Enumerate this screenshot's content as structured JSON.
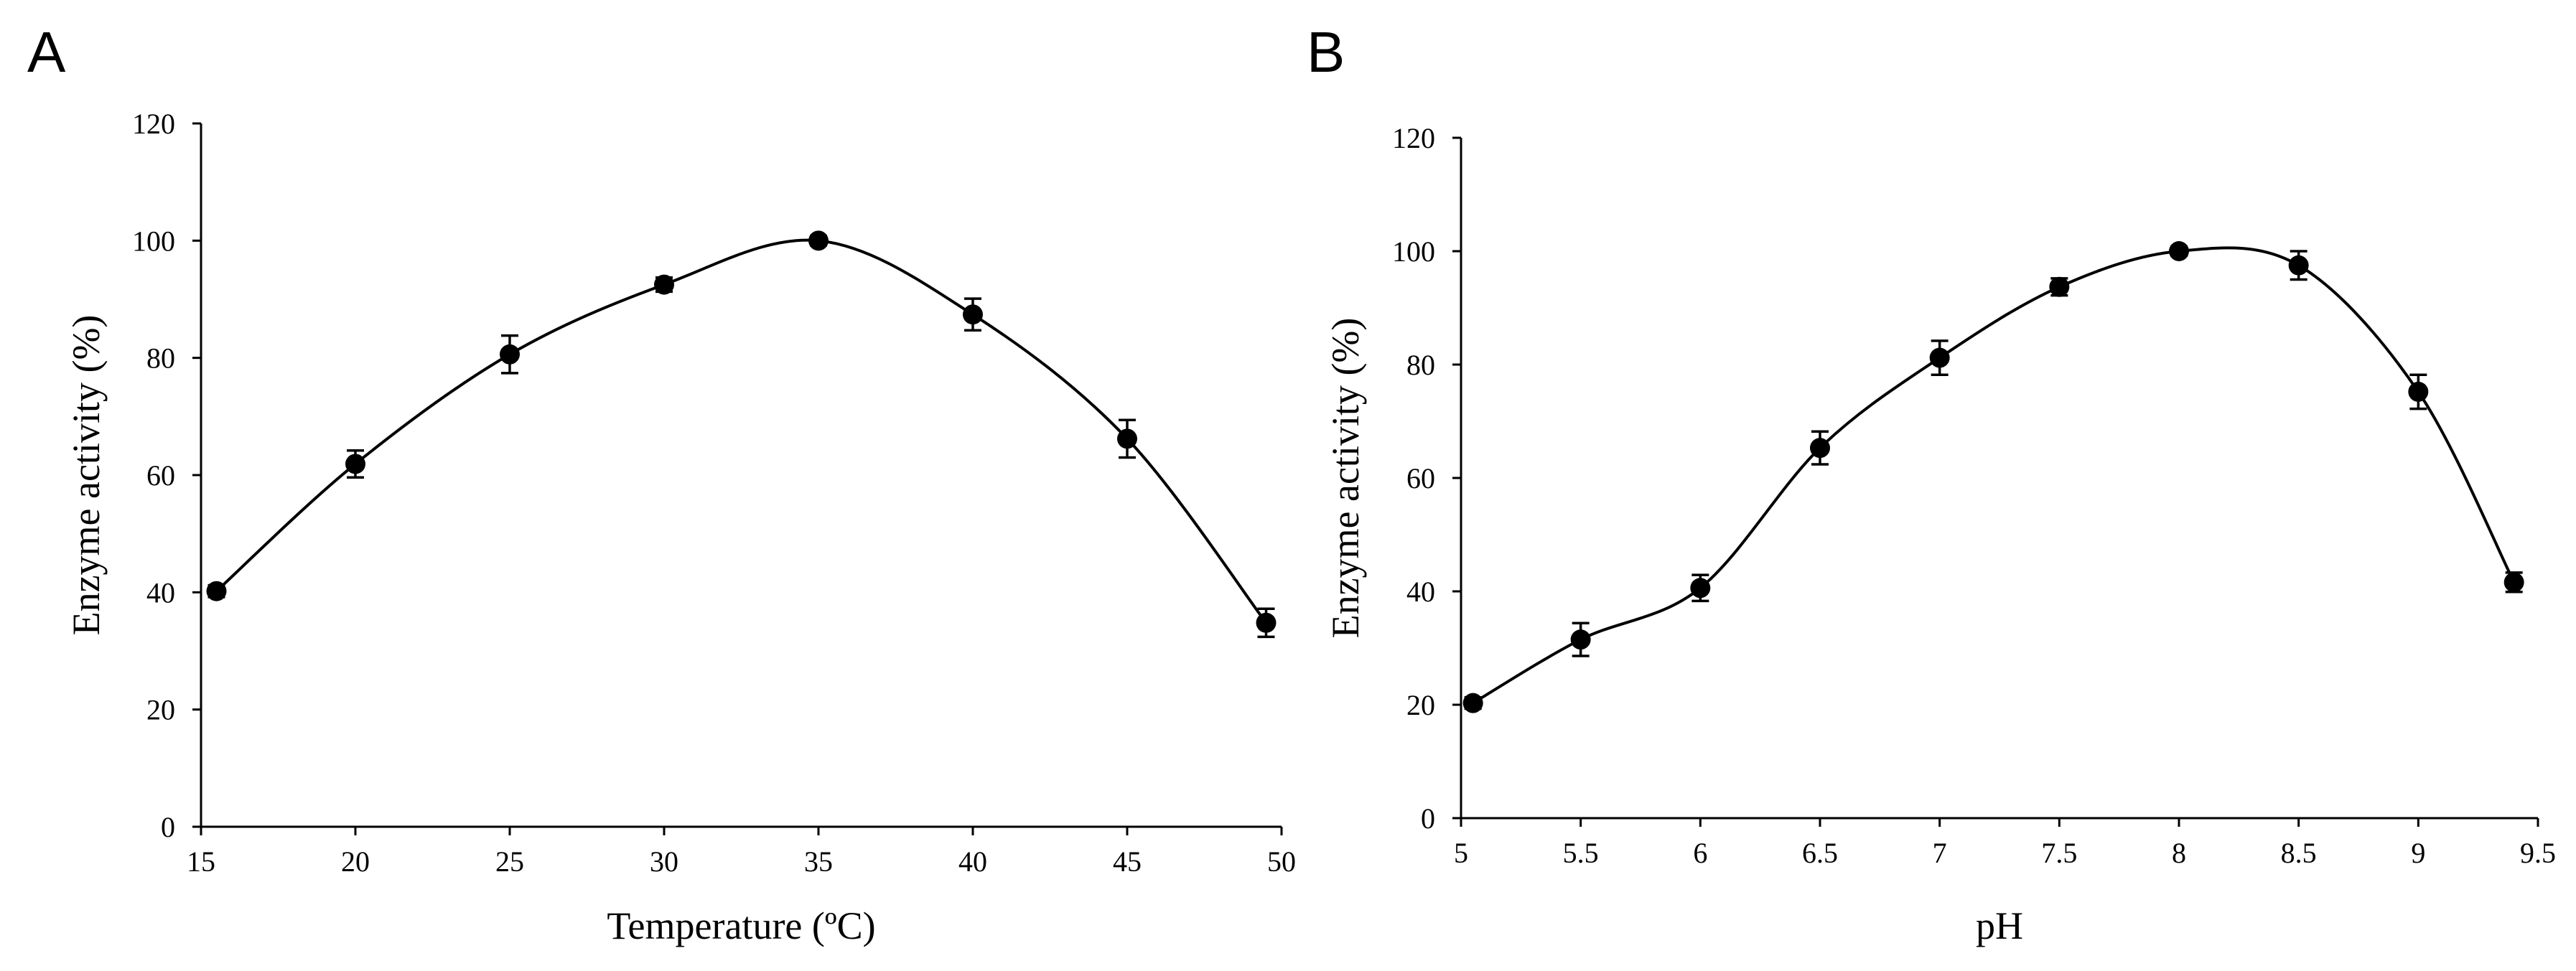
{
  "chart_data": [
    {
      "panel": "A",
      "type": "line",
      "xlabel": "Temperature (ºC)",
      "ylabel": "Enzyme activity (%)",
      "xlim": [
        15,
        50
      ],
      "ylim": [
        0,
        120
      ],
      "xticks": [
        15,
        20,
        25,
        30,
        35,
        40,
        45,
        50
      ],
      "yticks": [
        0,
        20,
        40,
        60,
        80,
        100,
        120
      ],
      "x": [
        15.5,
        20,
        25,
        30,
        35,
        40,
        45,
        49.5
      ],
      "values": [
        40.2,
        61.9,
        80.6,
        92.5,
        100,
        87.4,
        66.2,
        34.8
      ],
      "errors": [
        1.0,
        2.3,
        3.2,
        1.2,
        0.8,
        2.7,
        3.2,
        2.4
      ],
      "smoothed_curve": true,
      "markers": "filled-circle",
      "error_bars": true,
      "grid": false
    },
    {
      "panel": "B",
      "type": "line",
      "xlabel": "pH",
      "ylabel": "Enzyme activity (%)",
      "xlim": [
        5,
        9.5
      ],
      "ylim": [
        0,
        120
      ],
      "xticks": [
        5,
        5.5,
        6,
        6.5,
        7,
        7.5,
        8,
        8.5,
        9,
        9.5
      ],
      "yticks": [
        0,
        20,
        40,
        60,
        80,
        100,
        120
      ],
      "x": [
        5.05,
        5.5,
        6,
        6.5,
        7,
        7.5,
        8,
        8.5,
        9,
        9.4
      ],
      "values": [
        20.3,
        31.5,
        40.6,
        65.3,
        81.2,
        93.7,
        100,
        97.5,
        75.2,
        41.6
      ],
      "errors": [
        1.0,
        2.9,
        2.3,
        2.9,
        3.0,
        1.5,
        0.8,
        2.5,
        3.0,
        1.7
      ],
      "smoothed_curve": true,
      "markers": "filled-circle",
      "error_bars": true,
      "grid": false
    }
  ]
}
